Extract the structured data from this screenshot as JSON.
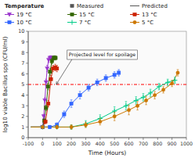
{
  "chart_data": {
    "type": "line",
    "title": "",
    "xlabel": "Time (Hours)",
    "ylabel": "log10 viable Bacillus spp (CFU/ml)",
    "xlim": [
      -100,
      1000
    ],
    "ylim": [
      0,
      10
    ],
    "xticks": [
      -100,
      0,
      100,
      200,
      300,
      400,
      500,
      600,
      700,
      800,
      900,
      1000
    ],
    "yticks": [
      0,
      1,
      2,
      3,
      4,
      5,
      6,
      7,
      8,
      9,
      10
    ],
    "grid": false,
    "legend": "top",
    "legend_title": "Temperature",
    "key_labels": [
      "Measured",
      "Predicted"
    ],
    "reference_lines": [
      {
        "y": 5.0,
        "color": "red",
        "line_style": "dashdot"
      }
    ],
    "annotations": [
      {
        "text": "Projected level for spoilage",
        "x": 95,
        "y": 5.0
      }
    ],
    "series": [
      {
        "name": "19 °C",
        "color": "#9933cc",
        "marker": "triangle-down",
        "x": [
          0,
          8,
          16,
          24,
          32,
          42,
          52,
          62,
          72
        ],
        "values": [
          1.0,
          2.0,
          3.5,
          5.2,
          6.5,
          7.3,
          7.5,
          7.5,
          7.4
        ],
        "errors": [
          0.1,
          0.2,
          0.25,
          0.3,
          0.3,
          0.25,
          0.2,
          0.2,
          0.2
        ],
        "predicted_x": [
          -80,
          -40,
          0,
          8,
          16,
          24,
          32,
          42,
          52,
          62,
          75
        ],
        "predicted_values": [
          1.0,
          1.0,
          1.0,
          2.0,
          3.5,
          5.2,
          6.5,
          7.3,
          7.5,
          7.5,
          7.5
        ]
      },
      {
        "name": "15 °C",
        "color": "#336600",
        "marker": "square",
        "x": [
          0,
          12,
          24,
          38,
          52,
          65,
          78,
          90
        ],
        "values": [
          1.0,
          1.6,
          2.8,
          4.8,
          6.2,
          7.2,
          7.5,
          7.5
        ],
        "errors": [
          0.1,
          0.15,
          0.25,
          0.3,
          0.3,
          0.25,
          0.2,
          0.2
        ],
        "predicted_x": [
          -80,
          -40,
          0,
          12,
          24,
          38,
          52,
          65,
          78,
          90,
          100
        ],
        "predicted_values": [
          1.0,
          1.0,
          1.0,
          1.6,
          2.8,
          4.8,
          6.2,
          7.2,
          7.5,
          7.5,
          7.5
        ]
      },
      {
        "name": "13 °C",
        "color": "#cc2200",
        "marker": "square",
        "x": [
          0,
          20,
          40,
          58,
          72,
          88,
          100
        ],
        "values": [
          1.0,
          1.5,
          3.2,
          5.5,
          6.5,
          6.6,
          6.5
        ],
        "errors": [
          0.1,
          0.2,
          0.3,
          0.35,
          0.3,
          0.3,
          0.3
        ],
        "predicted_x": [
          -80,
          -40,
          0,
          20,
          40,
          58,
          72,
          88,
          105
        ],
        "predicted_values": [
          1.0,
          1.0,
          1.0,
          1.5,
          3.2,
          5.5,
          6.5,
          6.6,
          6.6
        ]
      },
      {
        "name": "10 °C",
        "color": "#3366ff",
        "marker": "square",
        "x": [
          0,
          50,
          100,
          150,
          200,
          260,
          320,
          380,
          440,
          500,
          530
        ],
        "values": [
          1.0,
          1.0,
          1.2,
          2.2,
          3.2,
          4.0,
          4.7,
          5.2,
          5.6,
          5.9,
          6.1
        ],
        "errors": [
          0.1,
          0.15,
          0.2,
          0.3,
          0.35,
          0.35,
          0.3,
          0.3,
          0.3,
          0.3,
          0.3
        ],
        "predicted_x": [
          -80,
          0,
          50,
          100,
          150,
          200,
          260,
          320,
          380,
          440,
          500,
          530
        ],
        "predicted_values": [
          1.0,
          1.0,
          1.0,
          1.2,
          2.2,
          3.2,
          4.0,
          4.7,
          5.2,
          5.6,
          5.9,
          6.1
        ]
      },
      {
        "name": "7 °C",
        "color": "#00cc88",
        "marker": "plus",
        "x": [
          0,
          100,
          200,
          300,
          400,
          500,
          580,
          650,
          700,
          750,
          810,
          870,
          920
        ],
        "values": [
          1.0,
          1.0,
          1.0,
          1.3,
          1.8,
          2.5,
          3.0,
          3.5,
          3.8,
          4.2,
          4.8,
          5.2,
          5.4
        ],
        "errors": [
          0.1,
          0.15,
          0.2,
          0.3,
          0.35,
          0.4,
          0.4,
          0.35,
          0.35,
          0.35,
          0.3,
          0.3,
          0.3
        ],
        "predicted_x": [
          -80,
          0,
          100,
          200,
          300,
          400,
          500,
          580,
          650,
          700,
          750,
          810,
          870,
          920
        ],
        "predicted_values": [
          1.0,
          1.0,
          1.0,
          1.0,
          1.3,
          1.8,
          2.5,
          3.0,
          3.5,
          3.8,
          4.2,
          4.8,
          5.2,
          5.4
        ]
      },
      {
        "name": "5 °C",
        "color": "#cc7700",
        "marker": "circle",
        "x": [
          0,
          100,
          200,
          300,
          400,
          500,
          600,
          660,
          720,
          780,
          840,
          900,
          940
        ],
        "values": [
          1.0,
          1.0,
          1.0,
          1.2,
          1.5,
          2.0,
          2.6,
          3.0,
          3.5,
          4.0,
          4.5,
          5.1,
          6.1
        ],
        "errors": [
          0.1,
          0.15,
          0.2,
          0.25,
          0.3,
          0.4,
          0.45,
          0.4,
          0.4,
          0.35,
          0.3,
          0.3,
          0.3
        ],
        "predicted_x": [
          -80,
          0,
          100,
          200,
          300,
          400,
          500,
          600,
          660,
          720,
          780,
          840,
          900,
          940
        ],
        "predicted_values": [
          1.0,
          1.0,
          1.0,
          1.0,
          1.2,
          1.5,
          2.0,
          2.6,
          3.0,
          3.5,
          4.0,
          4.5,
          5.1,
          6.1
        ]
      }
    ]
  }
}
